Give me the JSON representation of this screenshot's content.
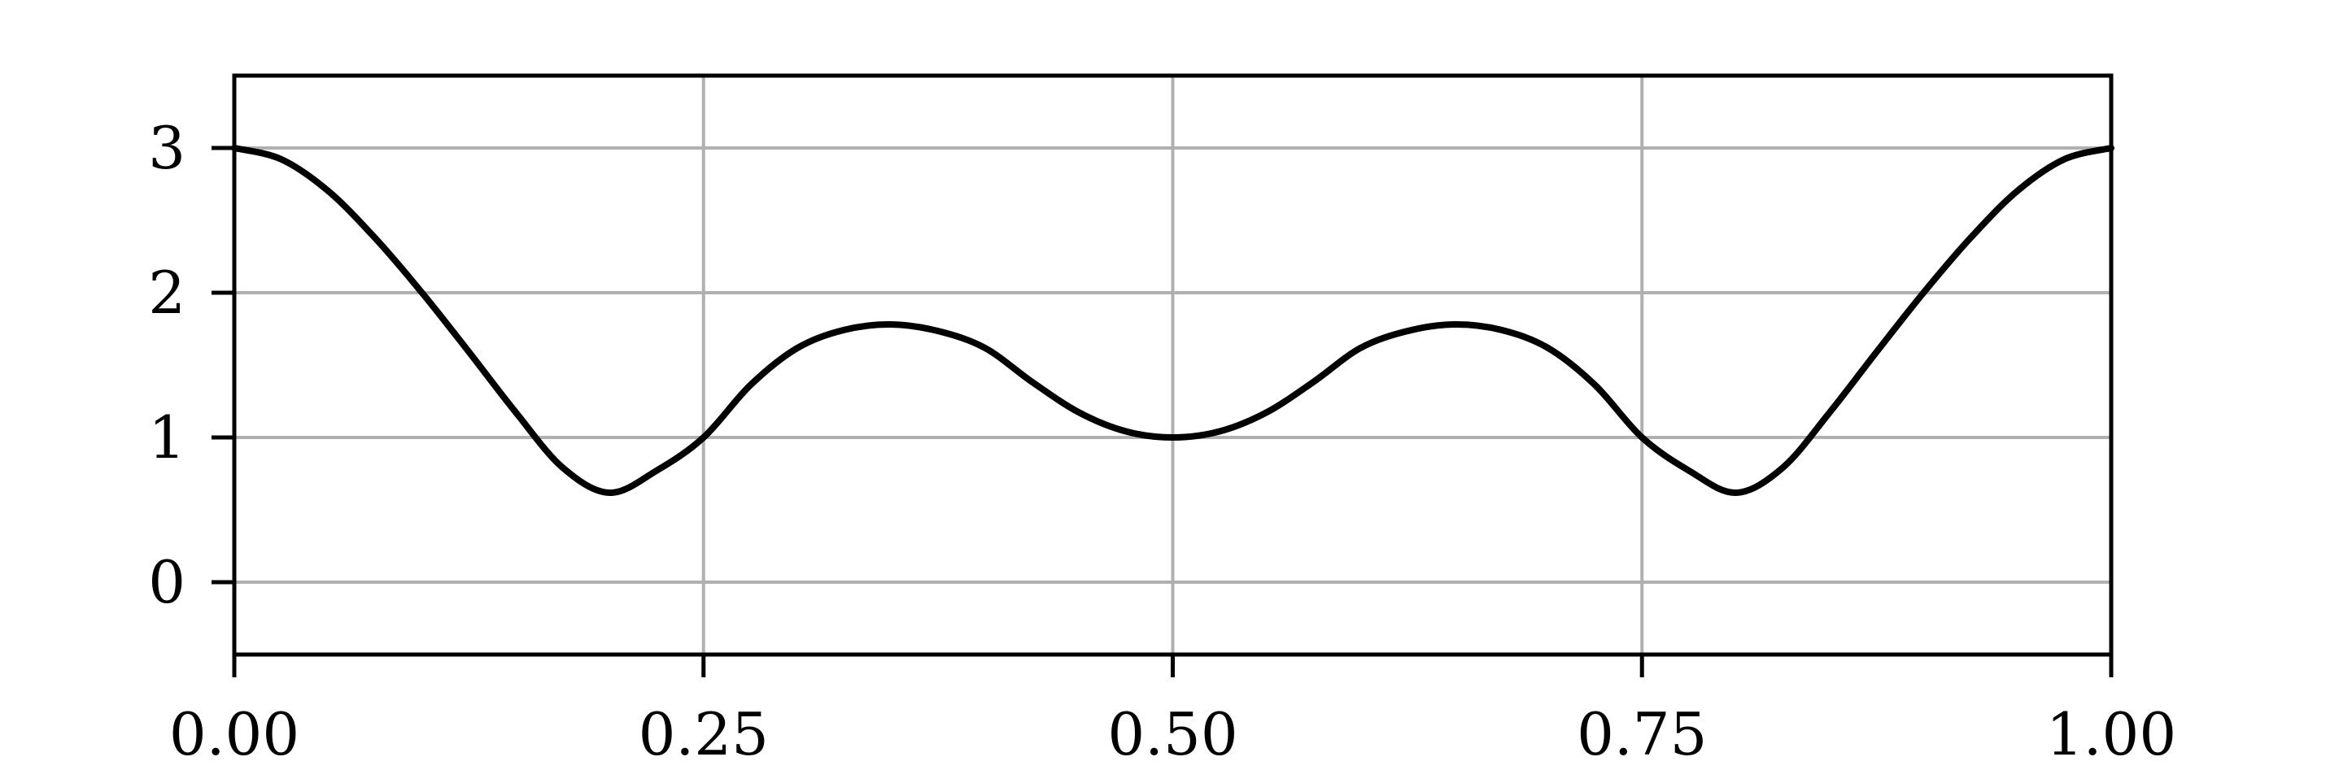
{
  "chart_data": {
    "type": "line",
    "title": "",
    "xlabel": "",
    "ylabel": "",
    "xlim": [
      0.0,
      1.0
    ],
    "ylim": [
      -0.5,
      3.5
    ],
    "x_ticks": [
      0.0,
      0.25,
      0.5,
      0.75,
      1.0
    ],
    "x_tick_labels": [
      "0.00",
      "0.25",
      "0.50",
      "0.75",
      "1.00"
    ],
    "y_ticks": [
      0,
      1,
      2,
      3
    ],
    "y_tick_labels": [
      "0",
      "1",
      "2",
      "3"
    ],
    "grid": true,
    "legend": false,
    "series": [
      {
        "color": "#000000",
        "x": [
          0.0,
          0.025,
          0.05,
          0.075,
          0.1,
          0.125,
          0.15,
          0.175,
          0.2,
          0.225,
          0.25,
          0.275,
          0.3,
          0.325,
          0.35,
          0.375,
          0.4,
          0.425,
          0.45,
          0.475,
          0.5,
          0.525,
          0.55,
          0.575,
          0.6,
          0.625,
          0.65,
          0.675,
          0.7,
          0.725,
          0.75,
          0.775,
          0.8,
          0.825,
          0.85,
          0.875,
          0.9,
          0.925,
          0.95,
          0.975,
          1.0
        ],
        "y": [
          3.0,
          2.922,
          2.703,
          2.378,
          2.0,
          1.591,
          1.173,
          0.791,
          0.618,
          0.771,
          1.0,
          1.362,
          1.618,
          1.743,
          1.781,
          1.735,
          1.618,
          1.384,
          1.173,
          1.042,
          1.0,
          1.042,
          1.173,
          1.384,
          1.618,
          1.735,
          1.781,
          1.743,
          1.618,
          1.362,
          1.0,
          0.771,
          0.618,
          0.791,
          1.173,
          1.591,
          2.0,
          2.378,
          2.703,
          2.922,
          3.0
        ]
      }
    ]
  },
  "colors": {
    "line": "#000000",
    "grid": "#b0b0b0",
    "axes": "#000000",
    "background": "#ffffff"
  }
}
